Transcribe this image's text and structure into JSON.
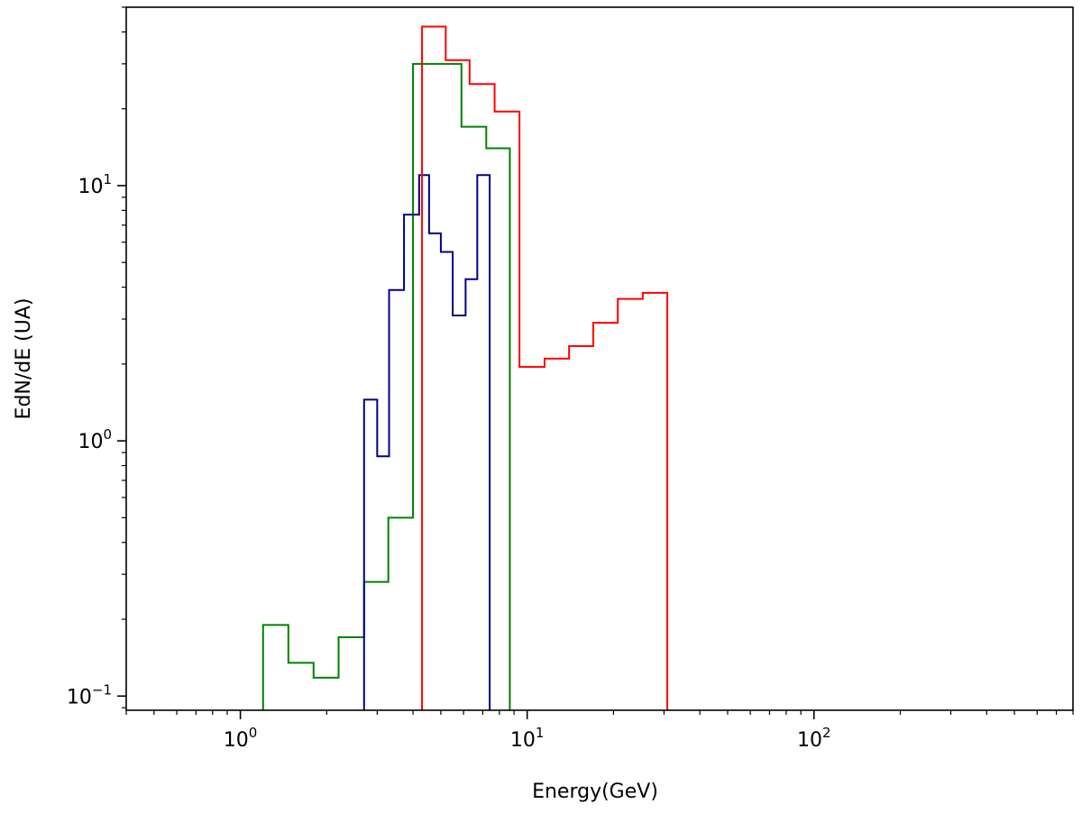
{
  "chart_data": {
    "type": "histogram-step",
    "xlabel": "Energy(GeV)",
    "ylabel": "EdN/dE (UA)",
    "xscale": "log",
    "yscale": "log",
    "xlim": [
      0.4,
      800
    ],
    "ylim": [
      0.088,
      50
    ],
    "x_ticks": [
      {
        "value": 1,
        "base": "10",
        "exp": "0"
      },
      {
        "value": 10,
        "base": "10",
        "exp": "1"
      },
      {
        "value": 100,
        "base": "10",
        "exp": "2"
      }
    ],
    "y_ticks": [
      {
        "value": 0.1,
        "base": "10",
        "exp": "−1"
      },
      {
        "value": 1,
        "base": "10",
        "exp": "0"
      },
      {
        "value": 10,
        "base": "10",
        "exp": "1"
      }
    ],
    "grid": false,
    "legend": "none",
    "series": [
      {
        "color": "#008000",
        "edges": [
          1.2,
          1.47,
          1.8,
          2.2,
          2.7,
          3.28,
          4.0,
          4.85,
          5.9,
          7.2,
          8.7
        ],
        "values": [
          0.19,
          0.135,
          0.118,
          0.17,
          0.28,
          0.5,
          30,
          30,
          17,
          14
        ]
      },
      {
        "color": "#00008b",
        "edges": [
          2.7,
          3.0,
          3.3,
          3.72,
          4.2,
          4.55,
          5.0,
          5.5,
          6.1,
          6.7,
          7.4
        ],
        "values": [
          1.45,
          0.87,
          3.9,
          7.7,
          11,
          6.5,
          5.5,
          3.1,
          4.3,
          11
        ]
      },
      {
        "color": "#ff0000",
        "edges": [
          4.3,
          5.2,
          6.3,
          7.7,
          9.4,
          11.5,
          14.0,
          17.0,
          20.7,
          25.3,
          30.8
        ],
        "values": [
          42,
          31,
          25,
          19.5,
          1.95,
          2.1,
          2.35,
          2.9,
          3.6,
          3.8
        ]
      }
    ]
  }
}
